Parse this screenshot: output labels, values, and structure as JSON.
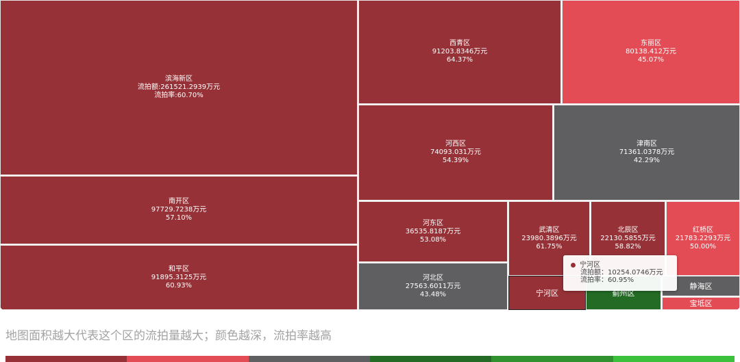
{
  "chart_data": {
    "type": "treemap",
    "cells": [
      {
        "name": "滨海新区",
        "amount_label": "流拍额:261521.2939万元",
        "rate_label": "流拍率:60.70%",
        "amount": 261521.2939,
        "rate": 60.7,
        "color": "#963237"
      },
      {
        "name": "南开区",
        "amount_label": "97729.7238万元",
        "rate_label": "57.10%",
        "amount": 97729.7238,
        "rate": 57.1,
        "color": "#963237"
      },
      {
        "name": "和平区",
        "amount_label": "91895.3125万元",
        "rate_label": "60.93%",
        "amount": 91895.3125,
        "rate": 60.93,
        "color": "#963237"
      },
      {
        "name": "西青区",
        "amount_label": "91203.8346万元",
        "rate_label": "64.37%",
        "amount": 91203.8346,
        "rate": 64.37,
        "color": "#963237"
      },
      {
        "name": "东丽区",
        "amount_label": "80138.412万元",
        "rate_label": "45.07%",
        "amount": 80138.412,
        "rate": 45.07,
        "color": "#e34c55"
      },
      {
        "name": "河西区",
        "amount_label": "74093.031万元",
        "rate_label": "54.39%",
        "amount": 74093.031,
        "rate": 54.39,
        "color": "#963237"
      },
      {
        "name": "津南区",
        "amount_label": "71361.0378万元",
        "rate_label": "42.29%",
        "amount": 71361.0378,
        "rate": 42.29,
        "color": "#5f5e60"
      },
      {
        "name": "河东区",
        "amount_label": "36535.8187万元",
        "rate_label": "53.08%",
        "amount": 36535.8187,
        "rate": 53.08,
        "color": "#963237"
      },
      {
        "name": "河北区",
        "amount_label": "27563.6011万元",
        "rate_label": "43.48%",
        "amount": 27563.6011,
        "rate": 43.48,
        "color": "#5f5e60"
      },
      {
        "name": "武清区",
        "amount_label": "23980.3896万元",
        "rate_label": "61.75%",
        "amount": 23980.3896,
        "rate": 61.75,
        "color": "#963237"
      },
      {
        "name": "北辰区",
        "amount_label": "22130.5855万元",
        "rate_label": "58.82%",
        "amount": 22130.5855,
        "rate": 58.82,
        "color": "#963237"
      },
      {
        "name": "红桥区",
        "amount_label": "21783.2293万元",
        "rate_label": "50.00%",
        "amount": 21783.2293,
        "rate": 50.0,
        "color": "#e34c55"
      },
      {
        "name": "宁河区",
        "amount_label": "",
        "rate_label": "",
        "amount": 10254.0746,
        "rate": 60.95,
        "color": "#963237"
      },
      {
        "name": "蓟州区",
        "amount_label": "",
        "rate_label": "",
        "amount": null,
        "rate": null,
        "color": "#246b26"
      },
      {
        "name": "静海区",
        "amount_label": "",
        "rate_label": "",
        "amount": null,
        "rate": null,
        "color": "#5f5e60"
      },
      {
        "name": "宝坻区",
        "amount_label": "",
        "rate_label": "",
        "amount": null,
        "rate": null,
        "color": "#e34c55"
      }
    ],
    "tooltip": {
      "name": "宁河区",
      "amount_line": "流拍额：10254.0746万元",
      "rate_line": "流拍率：60.95%"
    },
    "legend_colors": [
      "#963237",
      "#e34c55",
      "#5f5e60",
      "#246b26",
      "#30922f",
      "#3bc13c"
    ]
  },
  "caption": "地图面积越大代表这个区的流拍量越大；颜色越深，流拍率越高"
}
